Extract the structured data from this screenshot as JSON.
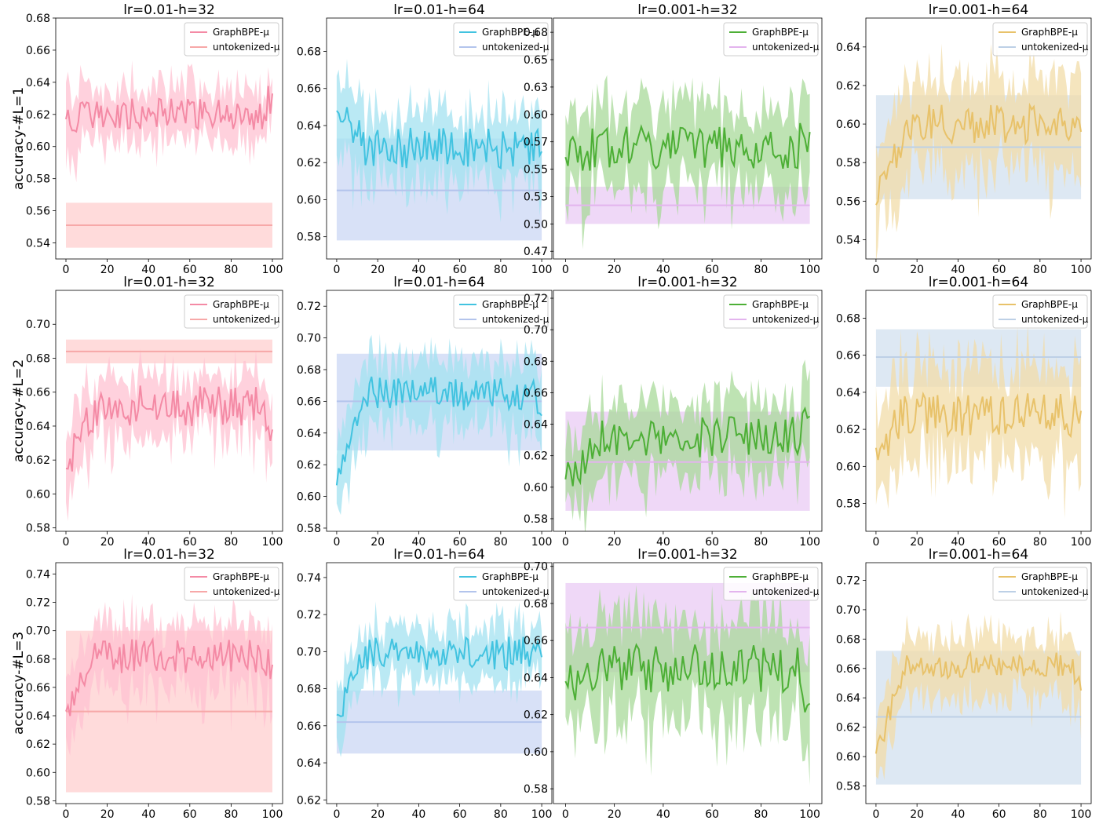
{
  "figure": {
    "row_labels": [
      "accuracy-#L=1",
      "accuracy-#L=2",
      "accuracy-#L=3"
    ],
    "column_titles": [
      "lr=0.01-h=32",
      "lr=0.01-h=64",
      "lr=0.001-h=32",
      "lr=0.001-h=64"
    ],
    "legend_labels": [
      "GraphBPE-μ",
      "untokenized-μ"
    ],
    "x_range": [
      0,
      100
    ],
    "x_ticks": [
      0,
      20,
      40,
      60,
      80,
      100
    ]
  },
  "colors": {
    "lr=0.01-h=32": {
      "line": "#f48aa5",
      "band": "#ffc2d1",
      "base_line": "#f7a8a8",
      "base_band": "#ffcccc"
    },
    "lr=0.01-h=64": {
      "line": "#42c3e0",
      "band": "#a3e2f0",
      "base_line": "#b3c4ec",
      "base_band": "#c7d4f3"
    },
    "lr=0.001-h=32": {
      "line": "#4daf36",
      "band": "#a8d99a",
      "base_line": "#e3b4ee",
      "base_band": "#e8c8f3"
    },
    "lr=0.001-h=64": {
      "line": "#e8c26a",
      "band": "#f2dca8",
      "base_line": "#bdd0e6",
      "base_band": "#cfdeee"
    }
  },
  "chart_data": [
    {
      "type": "line",
      "title": "lr=0.01-h=32",
      "xlabel": "",
      "ylabel": "accuracy-#L=1",
      "ylim": [
        0.53,
        0.68
      ],
      "yticks": [
        0.54,
        0.56,
        0.58,
        0.6,
        0.62,
        0.64,
        0.66,
        0.68
      ],
      "series": [
        {
          "name": "GraphBPE-μ",
          "x_start": 0,
          "x_end": 100,
          "base": 0.62,
          "start": 0.617,
          "end": 0.633,
          "noise": 0.01,
          "band": 0.016,
          "seed": 11
        },
        {
          "name": "untokenized-μ",
          "constant": true,
          "x_start": 0,
          "x_end": 100,
          "value": 0.551,
          "band_low": 0.537,
          "band_high": 0.565
        }
      ]
    },
    {
      "type": "line",
      "title": "lr=0.01-h=64",
      "xlabel": "",
      "ylabel": "",
      "ylim": [
        0.568,
        0.698
      ],
      "yticks": [
        0.58,
        0.6,
        0.62,
        0.64,
        0.66,
        0.68
      ],
      "series": [
        {
          "name": "GraphBPE-μ",
          "x_start": 0,
          "x_end": 100,
          "base": 0.628,
          "start": 0.648,
          "end": 0.626,
          "noise": 0.011,
          "band": 0.018,
          "seed": 12
        },
        {
          "name": "untokenized-μ",
          "constant": true,
          "x_start": 0,
          "x_end": 100,
          "value": 0.605,
          "band_low": 0.578,
          "band_high": 0.633
        }
      ]
    },
    {
      "type": "line",
      "title": "lr=0.001-h=32",
      "xlabel": "",
      "ylabel": "",
      "ylim": [
        0.468,
        0.688
      ],
      "yticks": [
        0.475,
        0.5,
        0.525,
        0.55,
        0.575,
        0.6,
        0.625,
        0.65,
        0.675
      ],
      "series": [
        {
          "name": "GraphBPE-μ",
          "x_start": 0,
          "x_end": 100,
          "base": 0.57,
          "start": 0.561,
          "end": 0.584,
          "noise": 0.02,
          "band": 0.035,
          "seed": 13
        },
        {
          "name": "untokenized-μ",
          "constant": true,
          "x_start": 0,
          "x_end": 100,
          "value": 0.517,
          "band_low": 0.5,
          "band_high": 0.534
        }
      ]
    },
    {
      "type": "line",
      "title": "lr=0.001-h=64",
      "xlabel": "",
      "ylabel": "",
      "ylim": [
        0.53,
        0.655
      ],
      "yticks": [
        0.54,
        0.56,
        0.58,
        0.6,
        0.62,
        0.64
      ],
      "series": [
        {
          "name": "GraphBPE-μ",
          "x_start": 0,
          "x_end": 100,
          "base": 0.6,
          "start": 0.558,
          "end": 0.596,
          "noise": 0.01,
          "band": 0.022,
          "seed": 14
        },
        {
          "name": "untokenized-μ",
          "constant": true,
          "x_start": 0,
          "x_end": 100,
          "value": 0.588,
          "band_low": 0.561,
          "band_high": 0.615
        }
      ]
    },
    {
      "type": "line",
      "title": "lr=0.01-h=32",
      "xlabel": "",
      "ylabel": "accuracy-#L=2",
      "ylim": [
        0.578,
        0.72
      ],
      "yticks": [
        0.58,
        0.6,
        0.62,
        0.64,
        0.66,
        0.68,
        0.7
      ],
      "series": [
        {
          "name": "GraphBPE-μ",
          "x_start": 0,
          "x_end": 100,
          "base": 0.652,
          "start": 0.615,
          "end": 0.638,
          "noise": 0.012,
          "band": 0.018,
          "seed": 21
        },
        {
          "name": "untokenized-μ",
          "constant": true,
          "x_start": 0,
          "x_end": 100,
          "value": 0.684,
          "band_low": 0.677,
          "band_high": 0.691
        }
      ]
    },
    {
      "type": "line",
      "title": "lr=0.01-h=64",
      "xlabel": "",
      "ylabel": "",
      "ylim": [
        0.578,
        0.73
      ],
      "yticks": [
        0.58,
        0.6,
        0.62,
        0.64,
        0.66,
        0.68,
        0.7,
        0.72
      ],
      "series": [
        {
          "name": "GraphBPE-μ",
          "x_start": 0,
          "x_end": 100,
          "base": 0.665,
          "start": 0.607,
          "end": 0.651,
          "noise": 0.011,
          "band": 0.02,
          "seed": 22
        },
        {
          "name": "untokenized-μ",
          "constant": true,
          "x_start": 0,
          "x_end": 100,
          "value": 0.66,
          "band_low": 0.629,
          "band_high": 0.69
        }
      ]
    },
    {
      "type": "line",
      "title": "lr=0.001-h=32",
      "xlabel": "",
      "ylabel": "",
      "ylim": [
        0.572,
        0.725
      ],
      "yticks": [
        0.58,
        0.6,
        0.62,
        0.64,
        0.66,
        0.68,
        0.7,
        0.72
      ],
      "series": [
        {
          "name": "GraphBPE-μ",
          "x_start": 0,
          "x_end": 100,
          "base": 0.632,
          "start": 0.605,
          "end": 0.645,
          "noise": 0.013,
          "band": 0.022,
          "seed": 23
        },
        {
          "name": "untokenized-μ",
          "constant": true,
          "x_start": 0,
          "x_end": 100,
          "value": 0.616,
          "band_low": 0.585,
          "band_high": 0.648
        }
      ]
    },
    {
      "type": "line",
      "title": "lr=0.001-h=64",
      "xlabel": "",
      "ylabel": "",
      "ylim": [
        0.565,
        0.695
      ],
      "yticks": [
        0.58,
        0.6,
        0.62,
        0.64,
        0.66,
        0.68
      ],
      "series": [
        {
          "name": "GraphBPE-μ",
          "x_start": 0,
          "x_end": 100,
          "base": 0.628,
          "start": 0.61,
          "end": 0.63,
          "noise": 0.012,
          "band": 0.025,
          "seed": 24
        },
        {
          "name": "untokenized-μ",
          "constant": true,
          "x_start": 0,
          "x_end": 100,
          "value": 0.659,
          "band_low": 0.643,
          "band_high": 0.674
        }
      ]
    },
    {
      "type": "line",
      "title": "lr=0.01-h=32",
      "xlabel": "",
      "ylabel": "accuracy-#L=3",
      "ylim": [
        0.578,
        0.748
      ],
      "yticks": [
        0.58,
        0.6,
        0.62,
        0.64,
        0.66,
        0.68,
        0.7,
        0.72,
        0.74
      ],
      "series": [
        {
          "name": "GraphBPE-μ",
          "x_start": 0,
          "x_end": 100,
          "base": 0.682,
          "start": 0.643,
          "end": 0.676,
          "noise": 0.012,
          "band": 0.022,
          "seed": 31
        },
        {
          "name": "untokenized-μ",
          "constant": true,
          "x_start": 0,
          "x_end": 100,
          "value": 0.643,
          "band_low": 0.586,
          "band_high": 0.7
        }
      ]
    },
    {
      "type": "line",
      "title": "lr=0.01-h=64",
      "xlabel": "",
      "ylabel": "",
      "ylim": [
        0.618,
        0.748
      ],
      "yticks": [
        0.62,
        0.64,
        0.66,
        0.68,
        0.7,
        0.72,
        0.74
      ],
      "series": [
        {
          "name": "GraphBPE-μ",
          "x_start": 0,
          "x_end": 100,
          "base": 0.699,
          "start": 0.666,
          "end": 0.697,
          "noise": 0.009,
          "band": 0.014,
          "seed": 32
        },
        {
          "name": "untokenized-μ",
          "constant": true,
          "x_start": 0,
          "x_end": 100,
          "value": 0.662,
          "band_low": 0.645,
          "band_high": 0.679
        }
      ]
    },
    {
      "type": "line",
      "title": "lr=0.001-h=32",
      "xlabel": "",
      "ylabel": "",
      "ylim": [
        0.572,
        0.702
      ],
      "yticks": [
        0.58,
        0.6,
        0.62,
        0.64,
        0.66,
        0.68,
        0.7
      ],
      "series": [
        {
          "name": "GraphBPE-μ",
          "x_start": 0,
          "x_end": 100,
          "base": 0.645,
          "start": 0.638,
          "end": 0.626,
          "noise": 0.013,
          "band": 0.025,
          "seed": 33
        },
        {
          "name": "untokenized-μ",
          "constant": true,
          "x_start": 0,
          "x_end": 100,
          "value": 0.667,
          "band_low": 0.643,
          "band_high": 0.691
        }
      ]
    },
    {
      "type": "line",
      "title": "lr=0.001-h=64",
      "xlabel": "",
      "ylabel": "",
      "ylim": [
        0.568,
        0.732
      ],
      "yticks": [
        0.58,
        0.6,
        0.62,
        0.64,
        0.66,
        0.68,
        0.7,
        0.72
      ],
      "series": [
        {
          "name": "GraphBPE-μ",
          "x_start": 0,
          "x_end": 100,
          "base": 0.662,
          "start": 0.602,
          "end": 0.645,
          "noise": 0.009,
          "band": 0.02,
          "seed": 34
        },
        {
          "name": "untokenized-μ",
          "constant": true,
          "x_start": 0,
          "x_end": 100,
          "value": 0.627,
          "band_low": 0.581,
          "band_high": 0.672
        }
      ]
    }
  ]
}
